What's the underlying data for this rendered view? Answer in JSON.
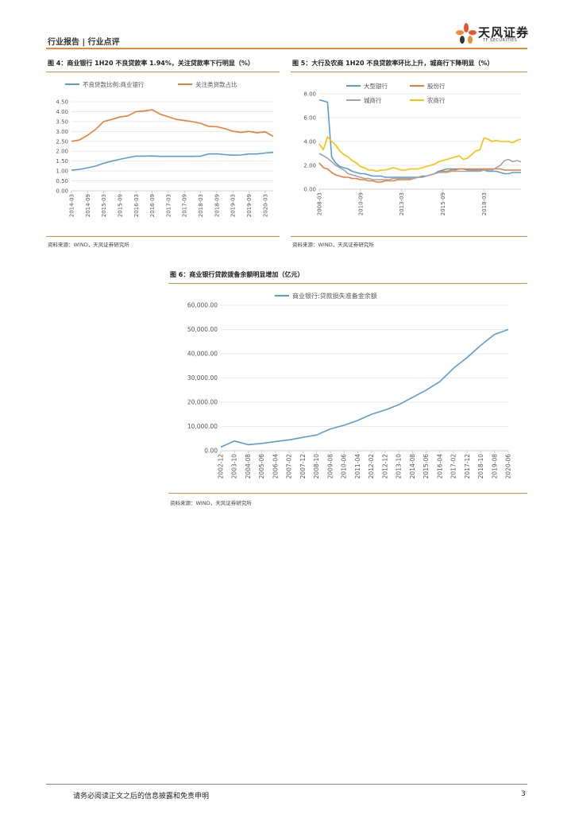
{
  "header": {
    "left_text": "行业报告 | 行业点评",
    "brand_cn": "天风证券",
    "brand_en": "TF SECURITIES"
  },
  "figures": [
    {
      "title": "图 4：商业银行 1H20 不良贷款率 1.94%，关注贷款率下行明显（%）",
      "source": "资料来源：WIND，天风证券研究所"
    },
    {
      "title": "图 5：大行及农商 1H20 不良贷款率环比上升，城商行下降明显（%）",
      "source": "资料来源：WIND，天风证券研究所"
    },
    {
      "title": "图 6：商业银行贷款拨备余额明显增加（亿元）",
      "source": "资料来源：WIND，天风证券研究所"
    }
  ],
  "footer": {
    "disclaimer": "请务必阅读正文之后的信息披露和免责申明",
    "page": "3"
  },
  "colors": {
    "blue": "#5b9bd5",
    "orange": "#ed7d31",
    "gray": "#a5a5a5",
    "yellow": "#ffc000",
    "accent": "#e58a3a"
  },
  "chart_data": [
    {
      "type": "line",
      "title": "图 4：商业银行 1H20 不良贷款率 1.94%，关注贷款率下行明显（%）",
      "x": [
        "2014-03",
        "2014-06",
        "2014-09",
        "2014-12",
        "2015-03",
        "2015-06",
        "2015-09",
        "2015-12",
        "2016-03",
        "2016-06",
        "2016-09",
        "2016-12",
        "2017-03",
        "2017-06",
        "2017-09",
        "2017-12",
        "2018-03",
        "2018-06",
        "2018-09",
        "2018-12",
        "2019-03",
        "2019-06",
        "2019-09",
        "2019-12",
        "2020-03",
        "2020-06"
      ],
      "x_tick_labels": [
        "2014-03",
        "2014-09",
        "2015-03",
        "2015-09",
        "2016-03",
        "2016-09",
        "2017-03",
        "2017-09",
        "2018-03",
        "2018-09",
        "2019-03",
        "2019-09",
        "2020-03"
      ],
      "ylim": [
        0,
        4.5
      ],
      "yticks": [
        "0.00",
        "0.50",
        "1.00",
        "1.50",
        "2.00",
        "2.50",
        "3.00",
        "3.50",
        "4.00",
        "4.50"
      ],
      "legend": "top",
      "series": [
        {
          "name": "不良贷款比例:商业银行",
          "color": "#5b9bd5",
          "values": [
            1.04,
            1.08,
            1.16,
            1.25,
            1.39,
            1.5,
            1.59,
            1.67,
            1.75,
            1.75,
            1.76,
            1.74,
            1.74,
            1.74,
            1.74,
            1.74,
            1.75,
            1.86,
            1.87,
            1.83,
            1.8,
            1.81,
            1.86,
            1.86,
            1.91,
            1.94
          ]
        },
        {
          "name": "关注类贷款占比",
          "color": "#ed7d31",
          "values": [
            2.5,
            2.57,
            2.81,
            3.11,
            3.5,
            3.61,
            3.73,
            3.79,
            4.0,
            4.03,
            4.1,
            3.87,
            3.74,
            3.61,
            3.55,
            3.49,
            3.41,
            3.26,
            3.24,
            3.14,
            3.01,
            2.95,
            3.0,
            2.93,
            2.98,
            2.75
          ]
        }
      ]
    },
    {
      "type": "line",
      "title": "图 5：大行及农商 1H20 不良贷款率环比上升，城商行下降明显（%）",
      "x": [
        "2008-03",
        "2008-06",
        "2008-09",
        "2008-12",
        "2009-03",
        "2009-06",
        "2009-09",
        "2009-12",
        "2010-03",
        "2010-06",
        "2010-09",
        "2010-12",
        "2011-03",
        "2011-06",
        "2011-09",
        "2011-12",
        "2012-03",
        "2012-06",
        "2012-09",
        "2012-12",
        "2013-03",
        "2013-06",
        "2013-09",
        "2013-12",
        "2014-03",
        "2014-06",
        "2014-09",
        "2014-12",
        "2015-03",
        "2015-06",
        "2015-09",
        "2015-12",
        "2016-03",
        "2016-06",
        "2016-09",
        "2016-12",
        "2017-03",
        "2017-06",
        "2017-09",
        "2017-12",
        "2018-03",
        "2018-06",
        "2018-09",
        "2018-12",
        "2019-03",
        "2019-06",
        "2019-09",
        "2019-12",
        "2020-03",
        "2020-06"
      ],
      "x_tick_labels": [
        "2008-03",
        "2009-01",
        "2009-11",
        "2010-09",
        "2011-07",
        "2012-05",
        "2013-03",
        "2014-01",
        "2014-11",
        "2015-09",
        "2016-07",
        "2017-05",
        "2018-03",
        "2019-01",
        "2019-11"
      ],
      "ylim": [
        0,
        8
      ],
      "yticks": [
        "0.00",
        "2.00",
        "4.00",
        "6.00",
        "8.00"
      ],
      "legend": "top",
      "series": [
        {
          "name": "大型银行",
          "color": "#5b9bd5",
          "values": [
            7.5,
            7.4,
            7.3,
            2.7,
            2.2,
            1.9,
            1.8,
            1.7,
            1.5,
            1.4,
            1.3,
            1.3,
            1.2,
            1.1,
            1.1,
            1.1,
            1.0,
            1.0,
            1.0,
            1.0,
            1.0,
            1.0,
            1.0,
            1.0,
            1.0,
            1.1,
            1.1,
            1.2,
            1.3,
            1.5,
            1.6,
            1.7,
            1.7,
            1.7,
            1.7,
            1.7,
            1.6,
            1.6,
            1.6,
            1.6,
            1.6,
            1.5,
            1.5,
            1.5,
            1.4,
            1.3,
            1.3,
            1.4,
            1.4,
            1.4
          ]
        },
        {
          "name": "股份行",
          "color": "#ed7d31",
          "values": [
            2.2,
            1.8,
            1.7,
            1.4,
            1.2,
            1.1,
            1.0,
            1.0,
            0.9,
            0.9,
            0.8,
            0.8,
            0.7,
            0.7,
            0.6,
            0.6,
            0.7,
            0.7,
            0.7,
            0.8,
            0.8,
            0.8,
            0.8,
            0.9,
            1.0,
            1.0,
            1.1,
            1.2,
            1.3,
            1.4,
            1.5,
            1.5,
            1.6,
            1.6,
            1.7,
            1.7,
            1.7,
            1.7,
            1.7,
            1.7,
            1.7,
            1.7,
            1.7,
            1.7,
            1.7,
            1.6,
            1.6,
            1.6,
            1.6,
            1.6
          ]
        },
        {
          "name": "城商行",
          "color": "#a5a5a5",
          "values": [
            3.0,
            2.8,
            2.6,
            2.3,
            2.0,
            1.8,
            1.6,
            1.3,
            1.2,
            1.1,
            1.0,
            0.9,
            0.9,
            0.8,
            0.8,
            0.8,
            0.8,
            0.8,
            0.9,
            0.9,
            0.9,
            0.9,
            0.9,
            0.9,
            1.0,
            1.0,
            1.1,
            1.2,
            1.3,
            1.4,
            1.4,
            1.4,
            1.5,
            1.5,
            1.5,
            1.5,
            1.5,
            1.5,
            1.5,
            1.5,
            1.6,
            1.6,
            1.6,
            1.8,
            2.0,
            2.4,
            2.5,
            2.3,
            2.4,
            2.3
          ]
        },
        {
          "name": "农商行",
          "color": "#ffc000",
          "values": [
            3.8,
            3.3,
            4.4,
            4.0,
            3.7,
            3.2,
            2.9,
            2.7,
            2.4,
            2.2,
            1.9,
            1.8,
            1.6,
            1.6,
            1.5,
            1.6,
            1.6,
            1.7,
            1.8,
            1.7,
            1.6,
            1.6,
            1.7,
            1.7,
            1.7,
            1.8,
            1.9,
            2.0,
            2.1,
            2.3,
            2.4,
            2.5,
            2.6,
            2.7,
            2.8,
            2.5,
            2.6,
            2.9,
            3.2,
            3.3,
            4.3,
            4.2,
            4.0,
            4.1,
            4.0,
            4.0,
            4.0,
            3.9,
            4.1,
            4.2
          ]
        }
      ]
    },
    {
      "type": "line",
      "title": "图 6：商业银行贷款拨备余额明显增加（亿元）",
      "x": [
        "2002-12",
        "2003-10",
        "2004-08",
        "2005-06",
        "2006-04",
        "2007-02",
        "2007-12",
        "2008-10",
        "2009-08",
        "2010-06",
        "2011-04",
        "2012-02",
        "2012-12",
        "2013-10",
        "2014-08",
        "2015-06",
        "2016-04",
        "2017-02",
        "2017-12",
        "2018-10",
        "2019-08",
        "2020-06"
      ],
      "x_tick_labels": [
        "2002-12",
        "2003-10",
        "2004-08",
        "2005-06",
        "2006-04",
        "2007-02",
        "2007-12",
        "2008-10",
        "2009-08",
        "2010-06",
        "2011-04",
        "2012-02",
        "2012-12",
        "2013-10",
        "2014-08",
        "2015-06",
        "2016-04",
        "2017-02",
        "2017-12",
        "2018-10",
        "2019-08",
        "2020-06"
      ],
      "ylim": [
        0,
        60000
      ],
      "yticks": [
        "0.00",
        "10,000.00",
        "20,000.00",
        "30,000.00",
        "40,000.00",
        "50,000.00",
        "60,000.00"
      ],
      "legend": "top",
      "series": [
        {
          "name": "商业银行:贷款损失准备金余额",
          "color": "#5b9bd5",
          "values": [
            1500,
            4000,
            2500,
            3000,
            3800,
            4500,
            5500,
            6500,
            9000,
            10500,
            12500,
            15000,
            16800,
            19000,
            22000,
            25000,
            28500,
            34000,
            38500,
            43500,
            48000,
            50000
          ]
        }
      ]
    }
  ]
}
